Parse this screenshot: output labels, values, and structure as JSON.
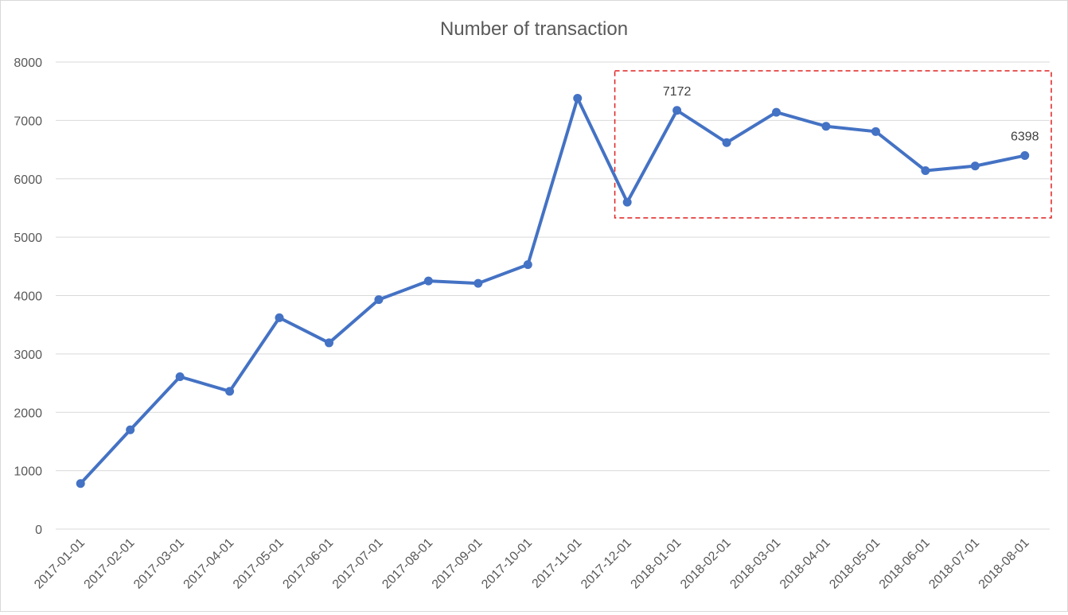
{
  "chart_data": {
    "type": "line",
    "title": "Number of transaction",
    "xlabel": "",
    "ylabel": "",
    "categories": [
      "2017-01-01",
      "2017-02-01",
      "2017-03-01",
      "2017-04-01",
      "2017-05-01",
      "2017-06-01",
      "2017-07-01",
      "2017-08-01",
      "2017-09-01",
      "2017-10-01",
      "2017-11-01",
      "2017-12-01",
      "2018-01-01",
      "2018-02-01",
      "2018-03-01",
      "2018-04-01",
      "2018-05-01",
      "2018-06-01",
      "2018-07-01",
      "2018-08-01"
    ],
    "series": [
      {
        "color": "#4472c4",
        "values": [
          780,
          1700,
          2610,
          2360,
          3620,
          3190,
          3930,
          4250,
          4210,
          4530,
          7380,
          5600,
          7172,
          6620,
          7140,
          6900,
          6810,
          6140,
          6220,
          6398
        ]
      }
    ],
    "data_labels": [
      {
        "index": 12,
        "text": "7172"
      },
      {
        "index": 19,
        "text": "6398"
      }
    ],
    "highlight_box": {
      "from_category": "2017-12-01",
      "to_category": "2018-08-01",
      "style": "dashed",
      "color": "#e02020"
    },
    "yticks": [
      "0",
      "1000",
      "2000",
      "3000",
      "4000",
      "5000",
      "6000",
      "7000",
      "8000"
    ],
    "ylim": [
      0,
      8000
    ],
    "grid": true,
    "legend": "none"
  }
}
